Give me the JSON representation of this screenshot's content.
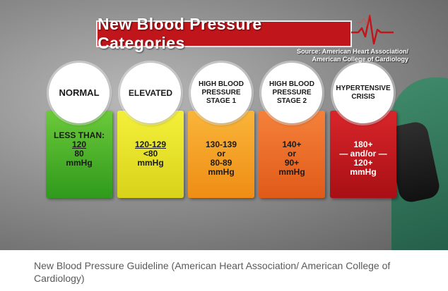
{
  "title": "New Blood Pressure Categories",
  "source": {
    "line1": "Source: American Heart Association/",
    "line2": "American College of Cardiology"
  },
  "categories": [
    {
      "label": "NORMAL",
      "color": "#3fb22a",
      "values": [
        "LESS THAN:",
        "120",
        "80",
        "mmHg"
      ]
    },
    {
      "label": "ELEVATED",
      "color": "#e8e41c",
      "values": [
        "120-129",
        "<80",
        "mmHg"
      ]
    },
    {
      "label": "HIGH BLOOD\nPRESSURE\nSTAGE 1",
      "color": "#f6a31c",
      "values": [
        "130-139",
        "or",
        "80-89",
        "mmHg"
      ]
    },
    {
      "label": "HIGH BLOOD\nPRESSURE\nSTAGE 2",
      "color": "#ef6a1e",
      "values": [
        "140+",
        "or",
        "90+",
        "mmHg"
      ]
    },
    {
      "label": "HYPERTENSIVE\nCRISIS",
      "color": "#c6151b",
      "values": [
        "180+",
        "— and/or —",
        "120+",
        "mmHg"
      ]
    }
  ],
  "caption": "New Blood Pressure Guideline (American Heart Association/ American College of Cardiology)"
}
